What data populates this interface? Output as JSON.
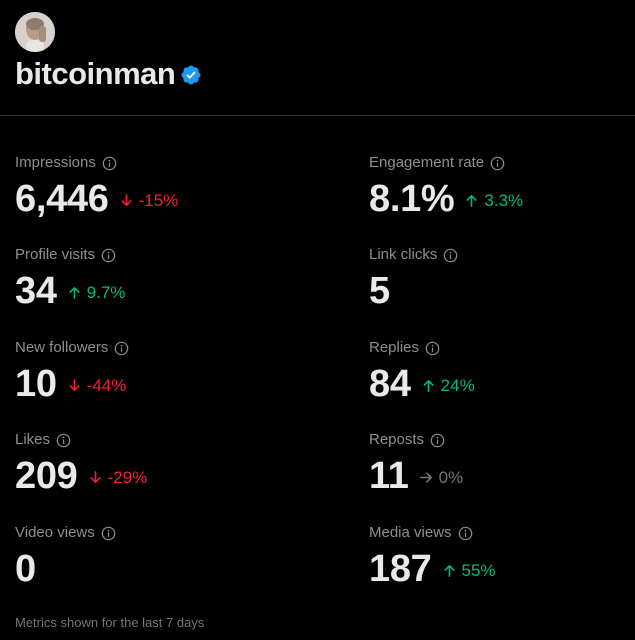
{
  "profile": {
    "username": "bitcoinman",
    "verified": true,
    "accent_color": "#1d9bf0"
  },
  "colors": {
    "background": "#000000",
    "negative": "#f4212e",
    "positive": "#00ba7c",
    "neutral": "#71767b"
  },
  "metrics": [
    {
      "label": "Impressions",
      "value": "6,446",
      "change": "-15%",
      "direction": "down",
      "icon": "arrow-down-icon"
    },
    {
      "label": "Engagement rate",
      "value": "8.1%",
      "change": "3.3%",
      "direction": "up",
      "icon": "arrow-up-icon"
    },
    {
      "label": "Profile visits",
      "value": "34",
      "change": "9.7%",
      "direction": "up",
      "icon": "arrow-up-icon"
    },
    {
      "label": "Link clicks",
      "value": "5",
      "change": "",
      "direction": "none",
      "icon": ""
    },
    {
      "label": "New followers",
      "value": "10",
      "change": "-44%",
      "direction": "down",
      "icon": "arrow-down-icon"
    },
    {
      "label": "Replies",
      "value": "84",
      "change": "24%",
      "direction": "up",
      "icon": "arrow-up-icon"
    },
    {
      "label": "Likes",
      "value": "209",
      "change": "-29%",
      "direction": "down",
      "icon": "arrow-down-icon"
    },
    {
      "label": "Reposts",
      "value": "11",
      "change": "0%",
      "direction": "flat",
      "icon": "arrow-right-icon"
    },
    {
      "label": "Video views",
      "value": "0",
      "change": "",
      "direction": "none",
      "icon": ""
    },
    {
      "label": "Media views",
      "value": "187",
      "change": "55%",
      "direction": "up",
      "icon": "arrow-up-icon"
    }
  ],
  "footer": {
    "note": "Metrics shown for the last 7 days"
  }
}
